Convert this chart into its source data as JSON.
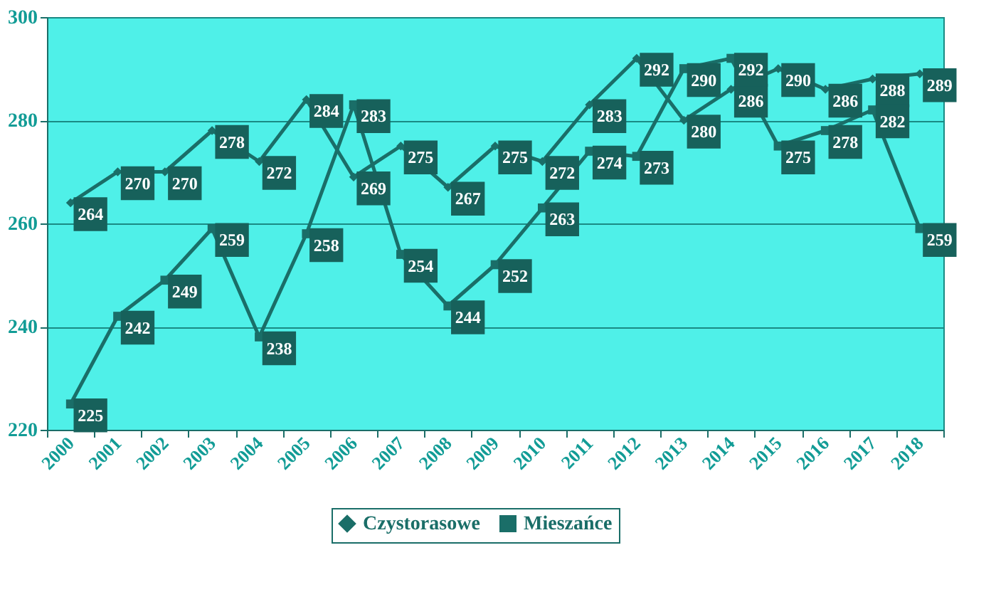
{
  "chart_data": {
    "type": "line",
    "categories": [
      "2000",
      "2001",
      "2002",
      "2003",
      "2004",
      "2005",
      "2006",
      "2007",
      "2008",
      "2009",
      "2010",
      "2011",
      "2012",
      "2013",
      "2014",
      "2015",
      "2016",
      "2017",
      "2018"
    ],
    "series": [
      {
        "name": "Czystorasowe",
        "color": "#1a6e68",
        "marker": "diamond",
        "values": [
          264,
          270,
          270,
          278,
          272,
          284,
          269,
          275,
          267,
          275,
          272,
          283,
          292,
          280,
          286,
          290,
          286,
          288,
          289
        ]
      },
      {
        "name": "Mieszańce",
        "color": "#1a6e68",
        "marker": "square",
        "values": [
          225,
          242,
          249,
          259,
          238,
          258,
          283,
          254,
          244,
          252,
          263,
          274,
          273,
          290,
          292,
          275,
          278,
          282,
          259
        ]
      }
    ],
    "ylim": [
      220,
      300
    ],
    "yticks": [
      220,
      240,
      260,
      280,
      300
    ],
    "grid": "y",
    "legend": "bottom",
    "data_labels": true,
    "line_style": "solid"
  }
}
